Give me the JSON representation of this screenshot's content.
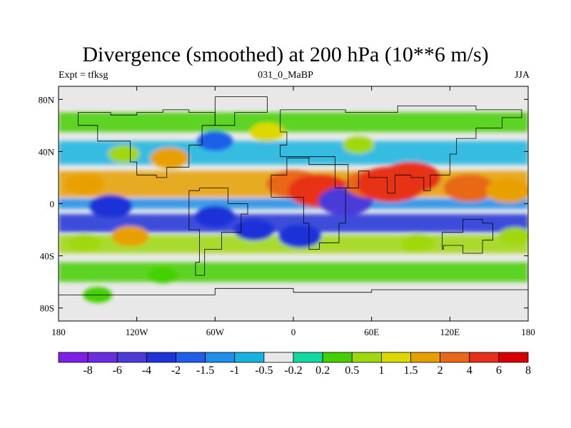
{
  "chart_data": {
    "type": "heatmap",
    "title": "Divergence (smoothed) at 200 hPa (10**6 m/s)",
    "subtitle_left": "Expt = tfksg",
    "subtitle_center": "031_0_MaBP",
    "subtitle_right": "JJA",
    "x_ticks": [
      {
        "value": -180,
        "label": "180"
      },
      {
        "value": -120,
        "label": "120W"
      },
      {
        "value": -60,
        "label": "60W"
      },
      {
        "value": 0,
        "label": "0"
      },
      {
        "value": 60,
        "label": "60E"
      },
      {
        "value": 120,
        "label": "120E"
      },
      {
        "value": 180,
        "label": "180"
      }
    ],
    "y_ticks": [
      {
        "value": 80,
        "label": "80N"
      },
      {
        "value": 40,
        "label": "40N"
      },
      {
        "value": 0,
        "label": "0"
      },
      {
        "value": -40,
        "label": "40S"
      },
      {
        "value": -80,
        "label": "80S"
      }
    ],
    "xlim": [
      -180,
      180
    ],
    "ylim": [
      -90,
      90
    ],
    "colorbar_labels": [
      "-8",
      "-6",
      "-4",
      "-2",
      "-1.5",
      "-1",
      "-0.5",
      "-0.2",
      "0.2",
      "0.5",
      "1",
      "1.5",
      "2",
      "4",
      "6",
      "8"
    ],
    "colorbar_colors": [
      "#7f1fe8",
      "#6a2ee0",
      "#4a3ad8",
      "#1f32d8",
      "#1e5ee8",
      "#1f8ee8",
      "#15b4e0",
      "#e8e8e8",
      "#0fd8a0",
      "#44d000",
      "#a0d810",
      "#dcd800",
      "#e8a000",
      "#e86818",
      "#e83018",
      "#d80000"
    ],
    "features": [
      {
        "lon": -160,
        "lat": 15,
        "value": 2.5
      },
      {
        "lon": -160,
        "lat": -30,
        "value": 1.2
      },
      {
        "lon": -125,
        "lat": -25,
        "value": 2.0
      },
      {
        "lon": -130,
        "lat": 38,
        "value": 1.0
      },
      {
        "lon": -95,
        "lat": 35,
        "value": 2.2
      },
      {
        "lon": -140,
        "lat": -2,
        "value": -3.0
      },
      {
        "lon": -60,
        "lat": -10,
        "value": -2.5
      },
      {
        "lon": -30,
        "lat": -20,
        "value": -2.5
      },
      {
        "lon": 5,
        "lat": -25,
        "value": -3.0
      },
      {
        "lon": 0,
        "lat": 15,
        "value": 5.0
      },
      {
        "lon": 20,
        "lat": 10,
        "value": 6.5
      },
      {
        "lon": 40,
        "lat": 2,
        "value": -5.0
      },
      {
        "lon": 60,
        "lat": 15,
        "value": 5.0
      },
      {
        "lon": 75,
        "lat": 15,
        "value": 7.5
      },
      {
        "lon": 90,
        "lat": 20,
        "value": 6.0
      },
      {
        "lon": 135,
        "lat": 12,
        "value": 4.5
      },
      {
        "lon": 165,
        "lat": 10,
        "value": 3.5
      },
      {
        "lon": 170,
        "lat": -25,
        "value": 1.2
      },
      {
        "lon": 95,
        "lat": -30,
        "value": 1.3
      },
      {
        "lon": -20,
        "lat": 55,
        "value": 1.5
      },
      {
        "lon": -60,
        "lat": 48,
        "value": -1.8
      },
      {
        "lon": 50,
        "lat": 45,
        "value": 1.0
      },
      {
        "lon": -100,
        "lat": -55,
        "value": 0.7
      },
      {
        "lon": -150,
        "lat": -70,
        "value": 0.6
      }
    ]
  }
}
